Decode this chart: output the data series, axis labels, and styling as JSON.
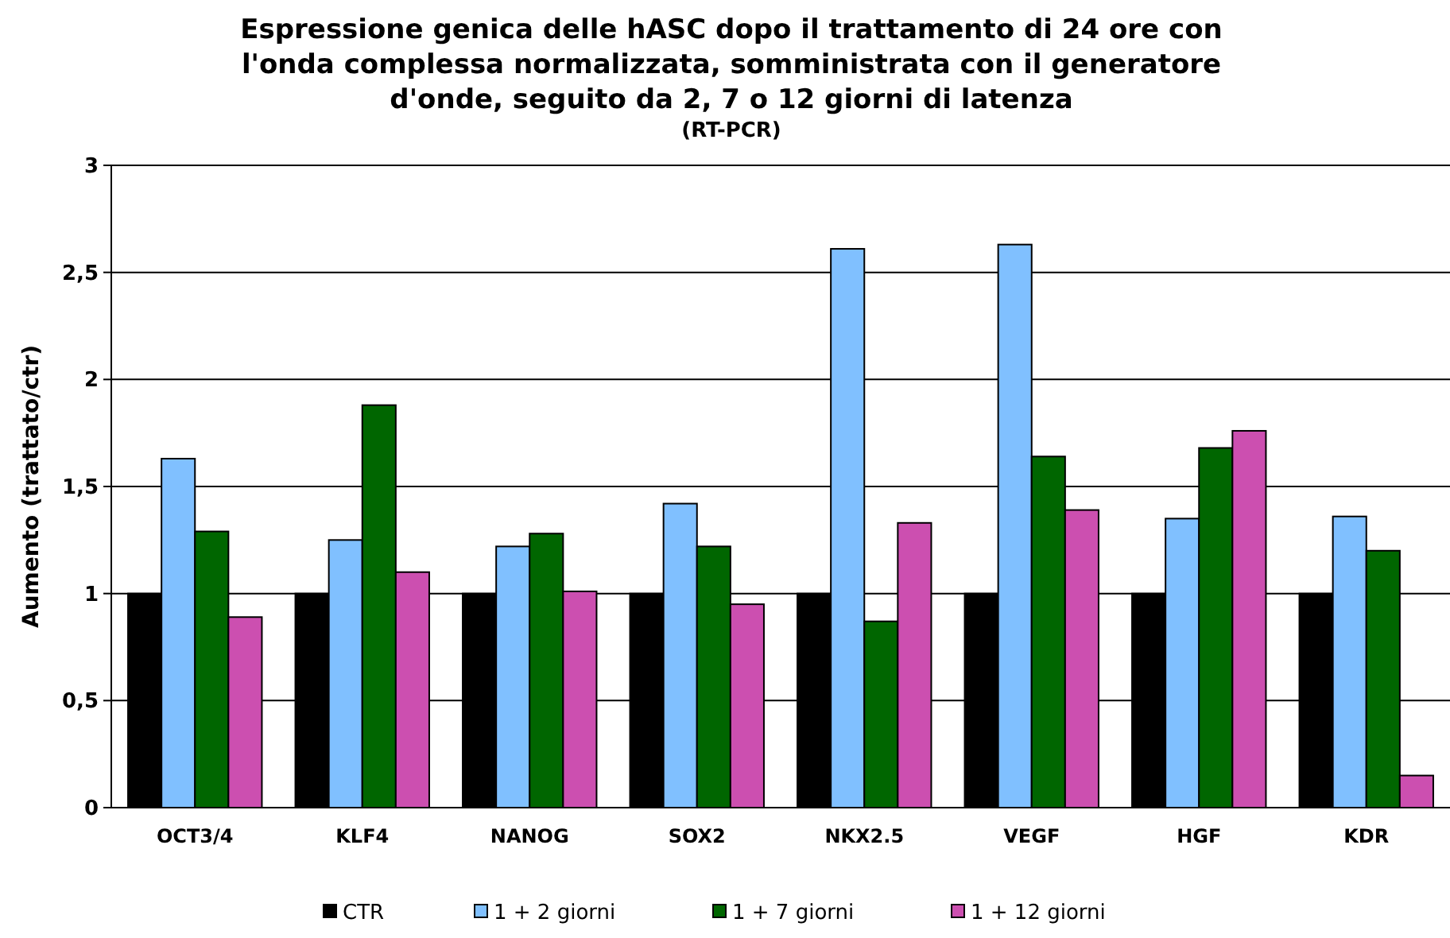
{
  "chart_data": {
    "type": "bar",
    "title": "Espressione genica delle hASC dopo il trattamento di 24 ore con l'onda complessa normalizzata, somministrata con il generatore d'onde, seguito da 2, 7 o 12 giorni di latenza",
    "subtitle": "(RT-PCR)",
    "ylabel": "Aumento (trattato/ctr)",
    "categories": [
      "OCT3/4",
      "KLF4",
      "NANOG",
      "SOX2",
      "NKX2.5",
      "VEGF",
      "HGF",
      "KDR"
    ],
    "series": [
      {
        "name": "CTR",
        "color": "#000000",
        "values": [
          1,
          1,
          1,
          1,
          1,
          1,
          1,
          1
        ]
      },
      {
        "name": "1 + 2 giorni",
        "color": "#80c0ff",
        "values": [
          1.63,
          1.25,
          1.22,
          1.42,
          2.61,
          2.63,
          1.35,
          1.36
        ]
      },
      {
        "name": "1 + 7 giorni",
        "color": "#006600",
        "values": [
          1.29,
          1.88,
          1.28,
          1.22,
          0.87,
          1.64,
          1.68,
          1.2
        ]
      },
      {
        "name": "1 + 12 giorni",
        "color": "#cc4fb0",
        "values": [
          0.89,
          1.1,
          1.01,
          0.95,
          1.33,
          1.39,
          1.76,
          0.15
        ]
      }
    ],
    "ylim": [
      0,
      3
    ],
    "yticks": [
      0,
      {
        "value": 0.5,
        "label": "0,5"
      },
      1,
      {
        "value": 1.5,
        "label": "1,5"
      },
      2,
      {
        "value": 2.5,
        "label": "2,5"
      },
      3
    ],
    "grid": "y",
    "legend": "bottom"
  }
}
